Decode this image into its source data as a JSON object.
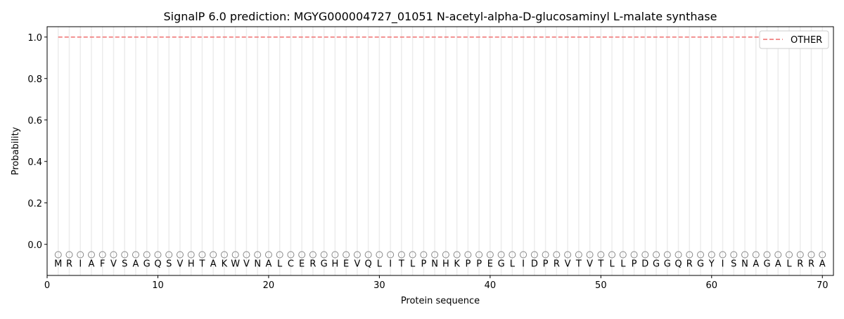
{
  "chart_data": {
    "type": "line",
    "title": "SignalP 6.0 prediction: MGYG000004727_01051 N-acetyl-alpha-D-glucosaminyl L-malate synthase",
    "xlabel": "Protein sequence",
    "ylabel": "Probability",
    "xlim": [
      0,
      71
    ],
    "ylim": [
      -0.15,
      1.05
    ],
    "xticks": [
      0,
      10,
      20,
      30,
      40,
      50,
      60,
      70
    ],
    "yticks": [
      0.0,
      0.2,
      0.4,
      0.6,
      0.8,
      1.0
    ],
    "ytick_labels": [
      "0.0",
      "0.2",
      "0.4",
      "0.6",
      "0.8",
      "1.0"
    ],
    "sequence": "MRIAFVSAGQSVHTAKWVNALCERGHEVQLITLPNHKPPEGLIDPRVTVTLLPDGGQRGYISNAGALRRA",
    "region_label": "O",
    "legend_position": "top-right",
    "series": [
      {
        "name": "OTHER",
        "color": "#f08080",
        "style": "dashed",
        "x_start": 1,
        "x_end": 70,
        "value": 1.0
      }
    ]
  }
}
